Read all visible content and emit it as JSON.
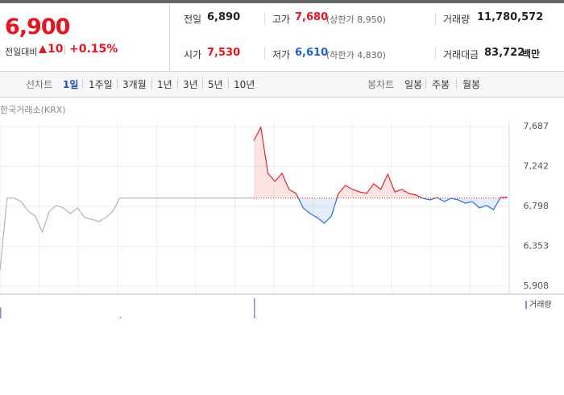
{
  "header": {
    "price": "6,900",
    "change_label": "전일대비",
    "change": "10",
    "change_rate": "+0.15%"
  },
  "stats": [
    {
      "label": "전일",
      "value": "6,890"
    },
    {
      "label": "고가",
      "value": "7,680",
      "note": "(상한가 8,950)"
    },
    {
      "label": "거래량",
      "value": "11,780,572"
    },
    {
      "label": "시가",
      "value": "7,530"
    },
    {
      "label": "저가",
      "value": "6,610",
      "note": "(하한가 4,830)"
    },
    {
      "label": "거래대금",
      "value": "83,722",
      "unit": "백만"
    }
  ],
  "tabs": {
    "line_label": "선차트",
    "line": [
      "1일",
      "1주일",
      "3개월",
      "1년",
      "3년",
      "5년",
      "10년"
    ],
    "candle_label": "봉차트",
    "candle": [
      "일봉",
      "주봉",
      "월봉"
    ]
  },
  "chart_data": {
    "type": "line",
    "source": "한국거래소(KRX)",
    "xlim": [
      0,
      80
    ],
    "ylim": [
      5818,
      7840
    ],
    "yticks": [
      {
        "value": 7687,
        "label": "7,687"
      },
      {
        "value": 7242,
        "label": "7,242"
      },
      {
        "value": 6798,
        "label": "6,798"
      },
      {
        "value": 6353,
        "label": "6,353"
      },
      {
        "value": 5908,
        "label": "5,908"
      }
    ],
    "baseline": 6890,
    "series": [
      {
        "color": "#b4b4b4",
        "x": [
          0,
          1,
          2,
          3,
          4,
          5,
          6,
          7,
          8,
          9,
          10,
          11,
          12,
          13,
          14,
          15,
          16,
          17,
          18,
          19,
          20,
          21,
          22,
          23,
          24,
          25,
          26,
          27,
          28,
          29,
          30,
          31,
          32,
          33,
          34,
          35,
          36
        ],
        "values": [
          6088,
          6890,
          6890,
          6851,
          6744,
          6690,
          6510,
          6744,
          6807,
          6780,
          6717,
          6780,
          6672,
          6654,
          6627,
          6672,
          6744,
          6890,
          6890,
          6890,
          6890,
          6890,
          6890,
          6890,
          6890,
          6890,
          6890,
          6890,
          6890,
          6890,
          6890,
          6890,
          6890,
          6890,
          6890,
          6890,
          6890
        ]
      },
      {
        "color": "#e8212b",
        "below_color": "#2d6cd0",
        "x": [
          36,
          37,
          38,
          39,
          40,
          41,
          42,
          43,
          44,
          45,
          46,
          47,
          48,
          49,
          50,
          51,
          52,
          53,
          54,
          55,
          56,
          57,
          58,
          59,
          60,
          61,
          62,
          63,
          64,
          65,
          66,
          67,
          68,
          69,
          70,
          71,
          72
        ],
        "values": [
          7530,
          7680,
          7166,
          7076,
          7166,
          6986,
          6941,
          6780,
          6717,
          6672,
          6610,
          6690,
          6941,
          7031,
          6986,
          6959,
          6941,
          7049,
          6986,
          7157,
          6959,
          6986,
          6941,
          6923,
          6887,
          6869,
          6896,
          6851,
          6887,
          6869,
          6833,
          6851,
          6780,
          6807,
          6762,
          6896,
          6900
        ]
      }
    ],
    "volume": {
      "label": "거래량",
      "color": "#9484c4",
      "x": [
        0,
        17,
        36
      ],
      "values": [
        55,
        8,
        100
      ],
      "ylim": [
        0,
        100
      ]
    }
  }
}
